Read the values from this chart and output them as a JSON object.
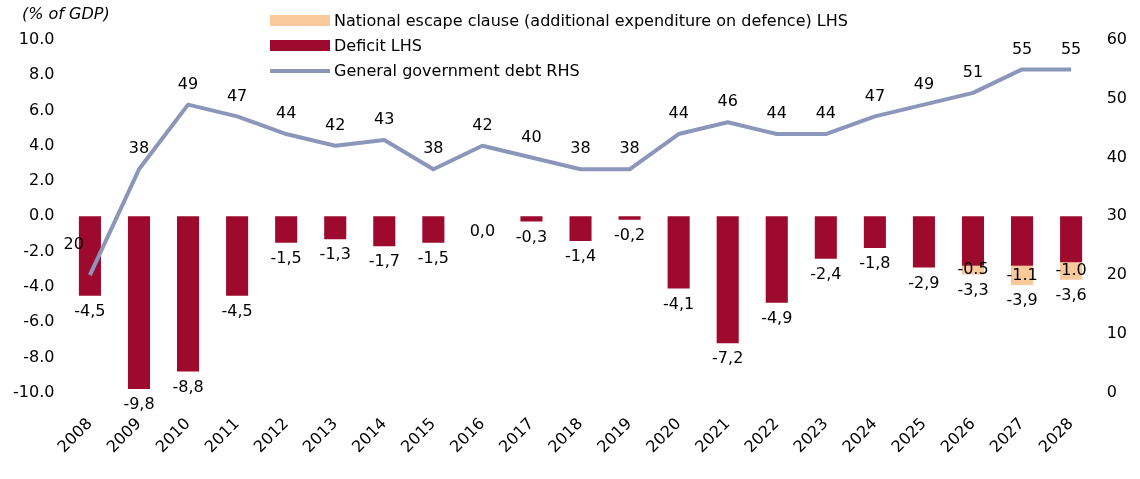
{
  "chart_data": {
    "type": "bar",
    "ylabel": "(% of GDP)",
    "stacked": true,
    "legend": "top left",
    "grid": false,
    "categories": [
      "2008",
      "2009",
      "2010",
      "2011",
      "2012",
      "2013",
      "2014",
      "2015",
      "2016",
      "2017",
      "2018",
      "2019",
      "2020",
      "2021",
      "2022",
      "2023",
      "2024",
      "2025",
      "2026",
      "2027",
      "2028"
    ],
    "ylim": [
      -10,
      10
    ],
    "yticks": [
      {
        "value": -10,
        "label": "-10.0"
      },
      {
        "value": -8,
        "label": "-8.0"
      },
      {
        "value": -6,
        "label": "-6.0"
      },
      {
        "value": -4,
        "label": "-4.0"
      },
      {
        "value": -2,
        "label": "-2.0"
      },
      {
        "value": 0,
        "label": "0.0"
      },
      {
        "value": 2,
        "label": "2.0"
      },
      {
        "value": 4,
        "label": "4.0"
      },
      {
        "value": 6,
        "label": "6.0"
      },
      {
        "value": 8,
        "label": "8.0"
      },
      {
        "value": 10,
        "label": "10.0"
      }
    ],
    "y2lim": [
      0,
      60
    ],
    "y2ticks": [
      0,
      10,
      20,
      30,
      40,
      50,
      60
    ],
    "series": [
      {
        "name": "Deficit LHS",
        "color": "#9e0a2e",
        "values": [
          -4.5,
          -9.8,
          -8.8,
          -4.5,
          -1.5,
          -1.3,
          -1.7,
          -1.5,
          0.0,
          -0.3,
          -1.4,
          -0.2,
          -4.1,
          -7.2,
          -4.9,
          -2.4,
          -1.8,
          -2.9,
          -2.8,
          -2.8,
          -2.6
        ],
        "value_labels": [
          "-4,5",
          "-9,8",
          "-8,8",
          "-4,5",
          "-1,5",
          "-1,3",
          "-1,7",
          "-1,5",
          "0,0",
          "-0,3",
          "-1,4",
          "-0,2",
          "-4,1",
          "-7,2",
          "-4,9",
          "-2,4",
          "-1,8",
          "-2,9",
          null,
          null,
          null
        ]
      },
      {
        "name": "National escape clause (additional expenditure on defence) LHS",
        "color": "#f9c89b",
        "values": [
          null,
          null,
          null,
          null,
          null,
          null,
          null,
          null,
          null,
          null,
          null,
          null,
          null,
          null,
          null,
          null,
          null,
          null,
          -0.5,
          -1.1,
          -1.0
        ],
        "value_labels": [
          null,
          null,
          null,
          null,
          null,
          null,
          null,
          null,
          null,
          null,
          null,
          null,
          null,
          null,
          null,
          null,
          null,
          null,
          "-0.5",
          "-1.1",
          "-1.0"
        ]
      },
      {
        "type": "line",
        "axis": "y2",
        "name": "General government debt RHS",
        "color": "#8c96bb",
        "values": [
          20,
          38,
          49,
          47,
          44,
          42,
          43,
          38,
          42,
          40,
          38,
          38,
          44,
          46,
          44,
          44,
          47,
          49,
          51,
          55,
          55
        ],
        "value_labels": [
          "20",
          "38",
          "49",
          "47",
          "44",
          "42",
          "43",
          "38",
          "42",
          "40",
          "38",
          "38",
          "44",
          "46",
          "44",
          "44",
          "47",
          "49",
          "51",
          "55",
          "55"
        ]
      }
    ],
    "totals": [
      null,
      null,
      null,
      null,
      null,
      null,
      null,
      null,
      null,
      null,
      null,
      null,
      null,
      null,
      null,
      null,
      null,
      null,
      "-3,3",
      "-3,9",
      "-3,6"
    ]
  }
}
